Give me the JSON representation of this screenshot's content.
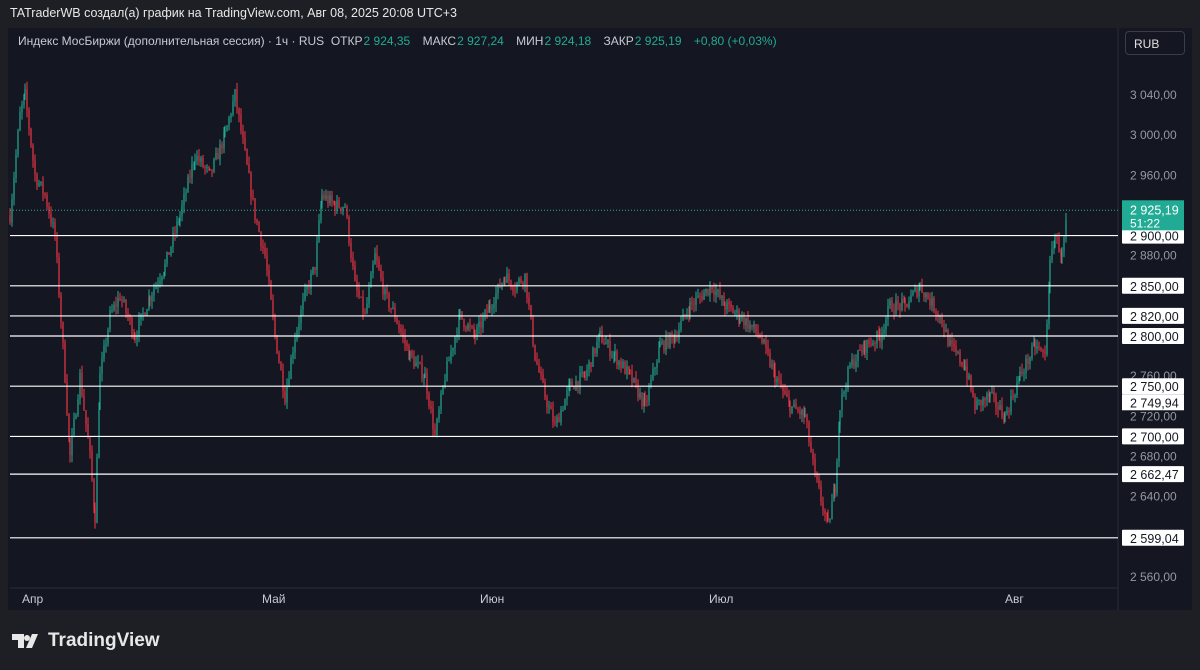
{
  "header": {
    "credit": "TATraderWB создал(а) график на TradingView.com, Авг 08, 2025 20:08 UTC+3"
  },
  "legend": {
    "symbol": "Индекс МосБиржи (дополнительная сессия) · 1ч · RUS",
    "open_label": "ОТКР",
    "open": "2 924,35",
    "high_label": "МАКС",
    "high": "2 927,24",
    "low_label": "МИН",
    "low": "2 924,18",
    "close_label": "ЗАКР",
    "close": "2 925,19",
    "change": "+0,80 (+0,03%)"
  },
  "currency_button": "RUB",
  "logo": "TradingView",
  "colors": {
    "up": "#22ab94",
    "down": "#f23645",
    "bg": "#141722",
    "level": "#ffffff"
  },
  "chart_data": {
    "type": "candlestick",
    "x_ticks": [
      {
        "label": "Апр",
        "bar": 12
      },
      {
        "label": "Май",
        "bar": 252
      },
      {
        "label": "Июн",
        "bar": 470
      },
      {
        "label": "Июл",
        "bar": 699
      },
      {
        "label": "Авг",
        "bar": 995
      }
    ],
    "y_ticks": [
      "3 040,00",
      "3 000,00",
      "2 960,00",
      "2 880,00",
      "2 760,00",
      "2 720,00",
      "2 680,00",
      "2 640,00",
      "2 560,00"
    ],
    "y_tick_values": [
      3040,
      3000,
      2960,
      2880,
      2760,
      2720,
      2680,
      2640,
      2560
    ],
    "ylim": [
      2550,
      3060
    ],
    "levels": [
      {
        "value": 2900,
        "label": "2 900,00"
      },
      {
        "value": 2850,
        "label": "2 850,00"
      },
      {
        "value": 2820,
        "label": "2 820,00"
      },
      {
        "value": 2800,
        "label": "2 800,00"
      },
      {
        "value": 2750,
        "label": "2 750,00"
      },
      {
        "value": 2700,
        "label": "2 700,00"
      },
      {
        "value": 2662.47,
        "label": "2 662,47"
      },
      {
        "value": 2599.04,
        "label": "2 599,04"
      }
    ],
    "extra_label": {
      "value": 2749.94,
      "label": "2 749,94"
    },
    "last_price": {
      "value": 2925.19,
      "label": "2 925,19",
      "countdown": "51:22"
    },
    "price_path": [
      [
        0,
        2920
      ],
      [
        10,
        3020
      ],
      [
        15,
        3040
      ],
      [
        25,
        2960
      ],
      [
        35,
        2940
      ],
      [
        45,
        2900
      ],
      [
        55,
        2760
      ],
      [
        60,
        2680
      ],
      [
        70,
        2760
      ],
      [
        80,
        2680
      ],
      [
        85,
        2620
      ],
      [
        90,
        2760
      ],
      [
        100,
        2820
      ],
      [
        110,
        2840
      ],
      [
        125,
        2800
      ],
      [
        140,
        2840
      ],
      [
        155,
        2870
      ],
      [
        170,
        2920
      ],
      [
        185,
        2980
      ],
      [
        200,
        2960
      ],
      [
        215,
        3000
      ],
      [
        225,
        3040
      ],
      [
        235,
        2980
      ],
      [
        245,
        2920
      ],
      [
        255,
        2880
      ],
      [
        265,
        2800
      ],
      [
        275,
        2740
      ],
      [
        285,
        2800
      ],
      [
        295,
        2840
      ],
      [
        305,
        2870
      ],
      [
        312,
        2940
      ],
      [
        325,
        2930
      ],
      [
        335,
        2930
      ],
      [
        345,
        2850
      ],
      [
        355,
        2820
      ],
      [
        365,
        2880
      ],
      [
        375,
        2840
      ],
      [
        385,
        2820
      ],
      [
        400,
        2780
      ],
      [
        415,
        2760
      ],
      [
        425,
        2700
      ],
      [
        435,
        2760
      ],
      [
        450,
        2820
      ],
      [
        465,
        2800
      ],
      [
        480,
        2830
      ],
      [
        495,
        2860
      ],
      [
        505,
        2850
      ],
      [
        515,
        2860
      ],
      [
        525,
        2780
      ],
      [
        535,
        2740
      ],
      [
        545,
        2710
      ],
      [
        560,
        2750
      ],
      [
        575,
        2760
      ],
      [
        590,
        2800
      ],
      [
        605,
        2780
      ],
      [
        620,
        2760
      ],
      [
        635,
        2730
      ],
      [
        650,
        2790
      ],
      [
        665,
        2800
      ],
      [
        680,
        2830
      ],
      [
        702,
        2850
      ],
      [
        715,
        2830
      ],
      [
        730,
        2820
      ],
      [
        750,
        2800
      ],
      [
        765,
        2760
      ],
      [
        780,
        2730
      ],
      [
        795,
        2720
      ],
      [
        805,
        2660
      ],
      [
        818,
        2610
      ],
      [
        825,
        2650
      ],
      [
        830,
        2730
      ],
      [
        840,
        2770
      ],
      [
        855,
        2790
      ],
      [
        870,
        2800
      ],
      [
        880,
        2830
      ],
      [
        895,
        2830
      ],
      [
        910,
        2850
      ],
      [
        930,
        2820
      ],
      [
        940,
        2790
      ],
      [
        955,
        2770
      ],
      [
        965,
        2730
      ],
      [
        980,
        2740
      ],
      [
        995,
        2720
      ],
      [
        1010,
        2760
      ],
      [
        1025,
        2790
      ],
      [
        1035,
        2780
      ],
      [
        1040,
        2870
      ],
      [
        1045,
        2900
      ],
      [
        1052,
        2880
      ],
      [
        1058,
        2925.19
      ]
    ]
  }
}
